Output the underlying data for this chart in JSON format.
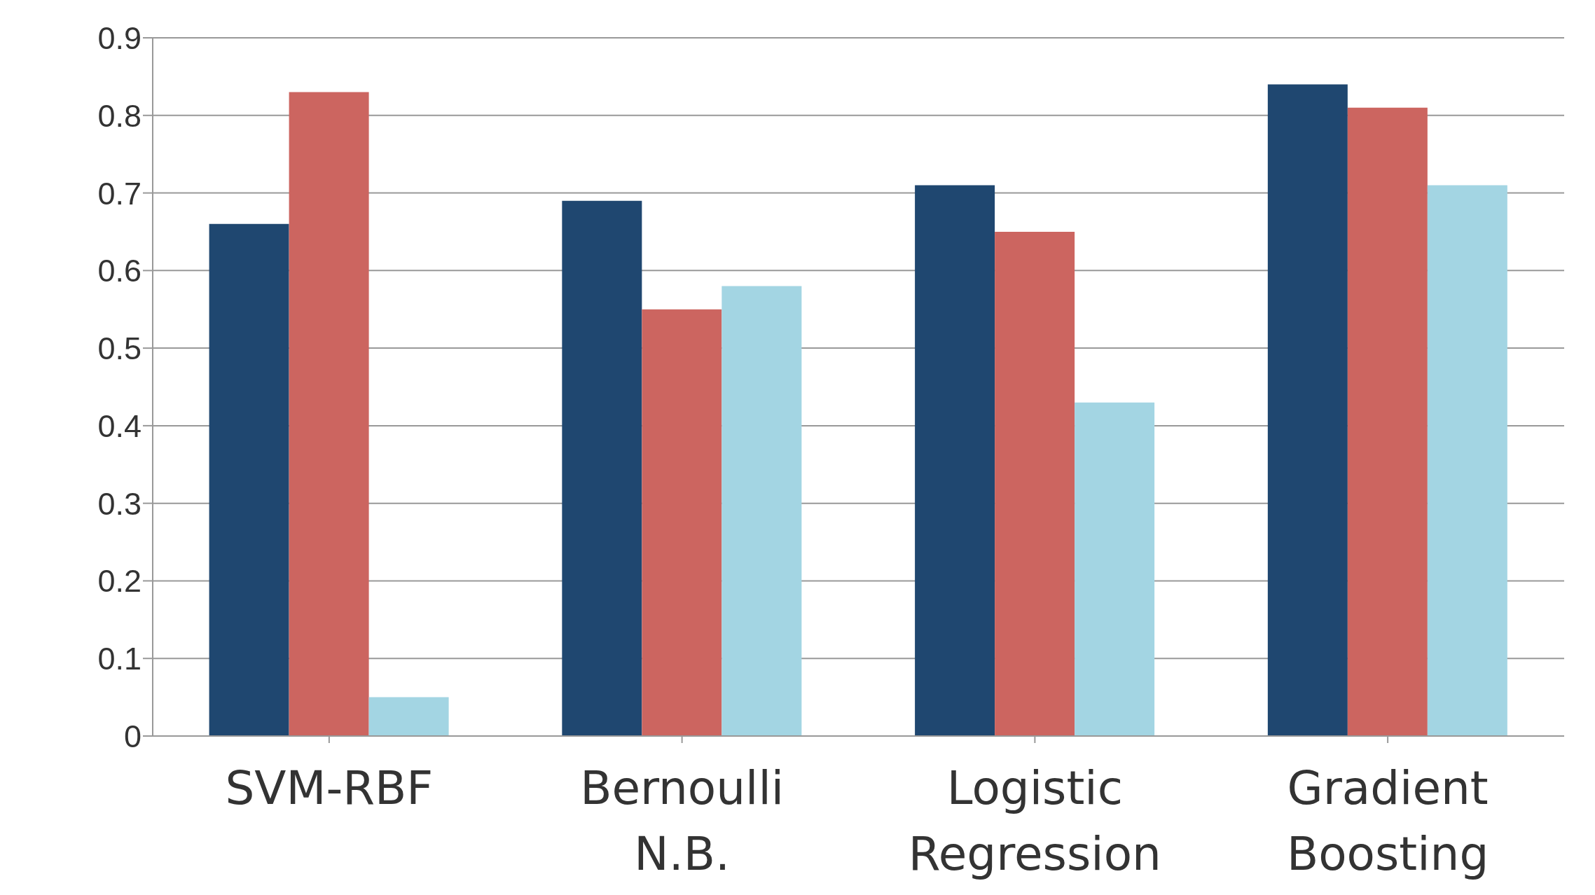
{
  "chart_data": {
    "type": "bar",
    "categories": [
      "SVM-RBF",
      "Bernoulli\nN.B.",
      "Logistic\nRegression",
      "Gradient\nBoosting"
    ],
    "series": [
      {
        "color": "#1f4770",
        "values": [
          0.66,
          0.69,
          0.71,
          0.84
        ]
      },
      {
        "color": "#cc6560",
        "values": [
          0.83,
          0.55,
          0.65,
          0.81
        ]
      },
      {
        "color": "#a3d5e3",
        "values": [
          0.05,
          0.58,
          0.43,
          0.71
        ]
      }
    ],
    "ylim": [
      0,
      0.9
    ],
    "yticks": [
      0,
      0.1,
      0.2,
      0.3,
      0.4,
      0.5,
      0.6,
      0.7,
      0.8,
      0.9
    ],
    "grid": "y",
    "legend": false
  }
}
